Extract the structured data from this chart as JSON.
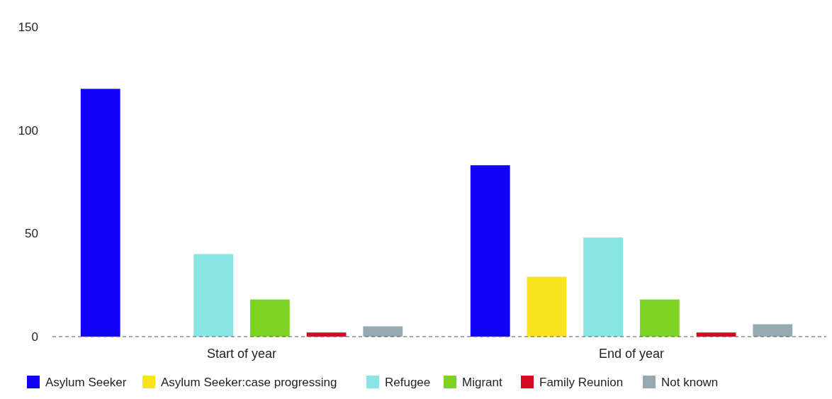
{
  "chart_data": {
    "type": "bar",
    "categories": [
      "Start of year",
      "End of year"
    ],
    "series": [
      {
        "name": "Asylum Seeker",
        "color": "#1000f5",
        "values": [
          120,
          83
        ]
      },
      {
        "name": "Asylum Seeker:case progressing",
        "color": "#f7e41e",
        "values": [
          0,
          29
        ]
      },
      {
        "name": "Refugee",
        "color": "#87e6e4",
        "values": [
          40,
          48
        ]
      },
      {
        "name": "Migrant",
        "color": "#7dd321",
        "values": [
          18,
          18
        ]
      },
      {
        "name": "Family Reunion",
        "color": "#d30c22",
        "values": [
          2,
          2
        ]
      },
      {
        "name": "Not known",
        "color": "#95abb1",
        "values": [
          5,
          6
        ]
      }
    ],
    "ylim": [
      0,
      150
    ],
    "yticks": [
      0,
      50,
      100,
      150
    ],
    "grid": false,
    "legend": "bottom"
  }
}
